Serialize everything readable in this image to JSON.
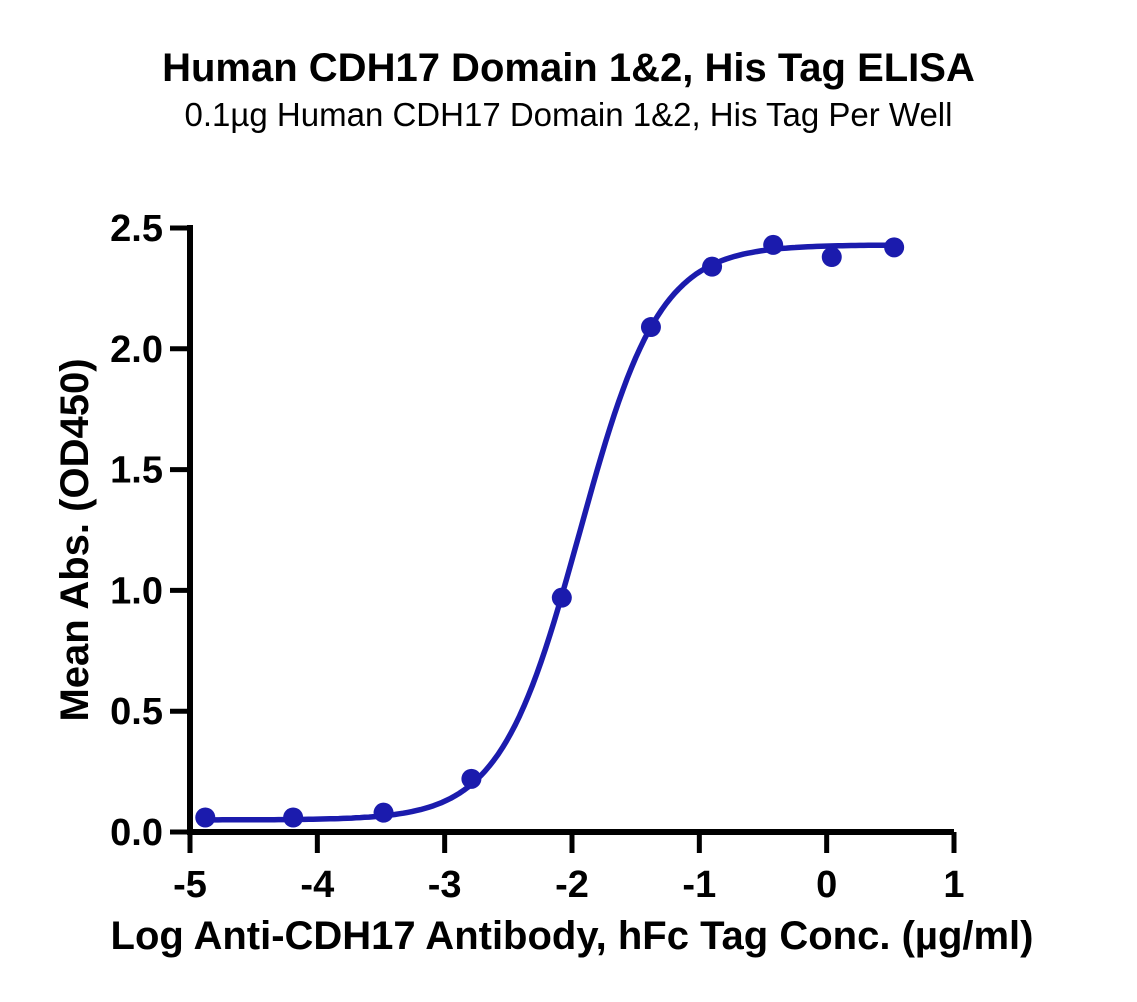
{
  "chart_data": {
    "type": "line",
    "title": "Human CDH17 Domain 1&2, His Tag ELISA",
    "subtitle": "0.1µg Human CDH17 Domain 1&2, His Tag Per Well",
    "xlabel": "Log Anti-CDH17 Antibody, hFc Tag Conc. (µg/ml)",
    "ylabel": "Mean Abs. (OD450)",
    "xlim": [
      -5,
      1
    ],
    "ylim": [
      0,
      2.5
    ],
    "grid": false,
    "legend": "none",
    "marker": "circle",
    "xticks": {
      "values": [
        -5,
        -4,
        -3,
        -2,
        -1,
        0,
        1
      ],
      "labels": [
        "-5",
        "-4",
        "-3",
        "-2",
        "-1",
        "0",
        "1"
      ]
    },
    "yticks": {
      "values": [
        0,
        0.5,
        1.0,
        1.5,
        2.0,
        2.5
      ],
      "labels": [
        "0.0",
        "0.5",
        "1.0",
        "1.5",
        "2.0",
        "2.5"
      ]
    },
    "series": [
      {
        "name": "Anti-CDH17 Antibody, hFc Tag",
        "color": "#1b1bad",
        "points": [
          {
            "x": -4.88,
            "y": 0.06
          },
          {
            "x": -4.19,
            "y": 0.06
          },
          {
            "x": -3.48,
            "y": 0.08
          },
          {
            "x": -2.79,
            "y": 0.22
          },
          {
            "x": -2.08,
            "y": 0.97
          },
          {
            "x": -1.38,
            "y": 2.09
          },
          {
            "x": -0.9,
            "y": 2.34
          },
          {
            "x": -0.42,
            "y": 2.43
          },
          {
            "x": 0.04,
            "y": 2.38
          },
          {
            "x": 0.53,
            "y": 2.42
          }
        ]
      }
    ],
    "curve_fit": {
      "model": "4PL",
      "bottom": 0.05,
      "top": 2.43,
      "logEC50": -1.94,
      "hill": 1.39
    }
  },
  "colors": {
    "curve": "#1b1bad",
    "axis": "#000000",
    "background": "#ffffff"
  }
}
